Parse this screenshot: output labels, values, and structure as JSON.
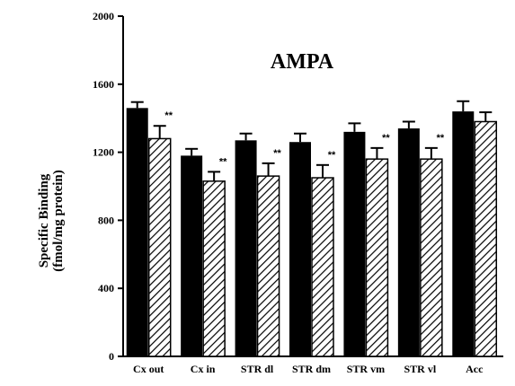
{
  "chart_data": {
    "type": "bar",
    "title": "AMPA",
    "ylabel_line1": "Specific Binding",
    "ylabel_line2": "(fmol/mg protein)",
    "xlabel": "",
    "ylim": [
      0,
      2000
    ],
    "yticks": [
      "0",
      "400",
      "800",
      "1200",
      "1600",
      "2000"
    ],
    "grid": false,
    "categories": [
      "Cx out",
      "Cx in",
      "STR dl",
      "STR dm",
      "STR vm",
      "STR vl",
      "Acc"
    ],
    "series": [
      {
        "fill": "solid-black",
        "values": [
          1460,
          1180,
          1270,
          1260,
          1320,
          1340,
          1440
        ],
        "errors": [
          35,
          40,
          40,
          50,
          50,
          40,
          60
        ]
      },
      {
        "fill": "diagonal-hatch",
        "values": [
          1280,
          1030,
          1060,
          1050,
          1160,
          1160,
          1380
        ],
        "errors": [
          75,
          55,
          75,
          75,
          65,
          65,
          55
        ]
      }
    ],
    "significance": [
      "**",
      "**",
      "**",
      "**",
      "**",
      "**",
      ""
    ]
  }
}
